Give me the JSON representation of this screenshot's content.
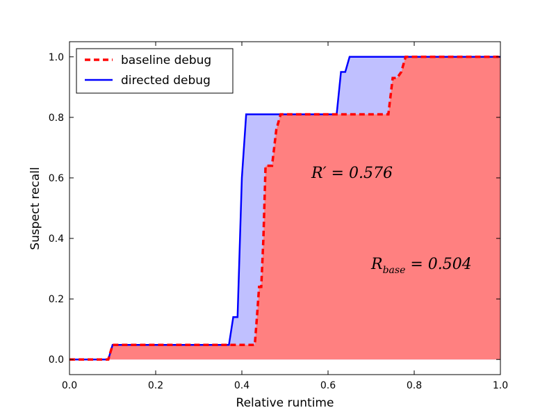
{
  "chart_data": {
    "type": "area",
    "xlabel": "Relative runtime",
    "ylabel": "Suspect recall",
    "xlim": [
      0.0,
      1.0
    ],
    "ylim": [
      -0.05,
      1.05
    ],
    "xticks": [
      "0.0",
      "0.2",
      "0.4",
      "0.6",
      "0.8",
      "1.0"
    ],
    "yticks": [
      "0.0",
      "0.2",
      "0.4",
      "0.6",
      "0.8",
      "1.0"
    ],
    "grid": false,
    "legend_position": "top-left",
    "annotations": [
      {
        "text": "R′ = 0.576",
        "x": 0.56,
        "y": 0.6
      },
      {
        "text": "R_base = 0.504",
        "x": 0.7,
        "y": 0.3
      }
    ],
    "series": [
      {
        "name": "baseline debug",
        "style": "dashed",
        "color": "#ff0000",
        "fill": "#ff8080",
        "x": [
          0.0,
          0.09,
          0.1,
          0.37,
          0.43,
          0.435,
          0.44,
          0.445,
          0.45,
          0.455,
          0.46,
          0.47,
          0.48,
          0.49,
          0.74,
          0.75,
          0.76,
          0.77,
          0.78,
          1.0
        ],
        "y": [
          0.0,
          0.0,
          0.048,
          0.048,
          0.048,
          0.14,
          0.24,
          0.24,
          0.4,
          0.64,
          0.64,
          0.64,
          0.76,
          0.81,
          0.81,
          0.93,
          0.93,
          0.95,
          1.0,
          1.0
        ]
      },
      {
        "name": "directed debug",
        "style": "solid",
        "color": "#0000ff",
        "fill": "#c0c0ff",
        "x": [
          0.0,
          0.09,
          0.1,
          0.37,
          0.38,
          0.39,
          0.4,
          0.41,
          0.62,
          0.63,
          0.64,
          0.65,
          1.0
        ],
        "y": [
          0.0,
          0.0,
          0.048,
          0.048,
          0.14,
          0.14,
          0.6,
          0.81,
          0.81,
          0.95,
          0.95,
          1.0,
          1.0
        ]
      }
    ]
  }
}
